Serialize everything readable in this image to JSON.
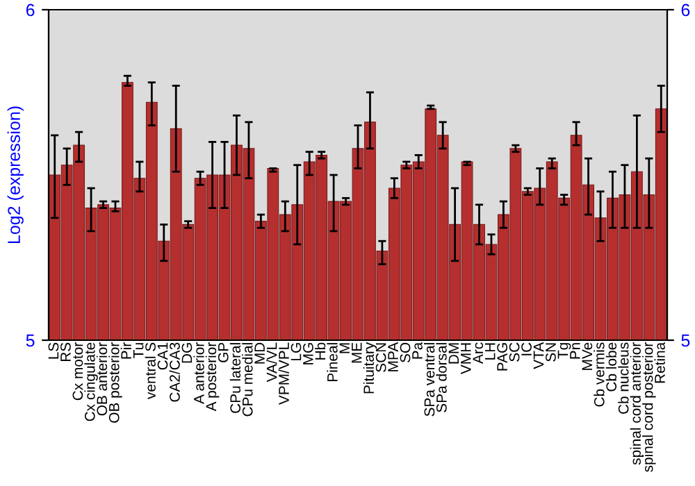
{
  "chart_data": {
    "type": "bar",
    "ylabel": "Log2 (expression)",
    "categories": [
      "LS",
      "RS",
      "Cx motor",
      "Cx cingulate",
      "OB anterior",
      "OB posterior",
      "Pir",
      "Tu",
      "ventral S",
      "CA1",
      "CA2/CA3",
      "DG",
      "A anterior",
      "A posterior",
      "GP",
      "CPu lateral",
      "CPu medial",
      "MD",
      "VA/VL",
      "VPM/VPL",
      "LG",
      "MG",
      "Hb",
      "Pineal",
      "M",
      "ME",
      "Pituitary",
      "SCN",
      "MPA",
      "SO",
      "Pa",
      "SPa ventral",
      "SPa dorsal",
      "DM",
      "VMH",
      "Arc",
      "LH",
      "PAG",
      "SC",
      "IC",
      "VTA",
      "SN",
      "Tg",
      "Pn",
      "MVe",
      "Cb vermis",
      "Cb lobe",
      "Cb nucleus",
      "spinal cord anterior",
      "spinal cord posterior",
      "Retina"
    ],
    "series": [
      {
        "color": "#b52f2f",
        "values": [
          5.5,
          5.53,
          5.59,
          5.4,
          5.41,
          5.4,
          5.78,
          5.49,
          5.72,
          5.3,
          5.64,
          5.35,
          5.49,
          5.5,
          5.5,
          5.59,
          5.58,
          5.36,
          5.52,
          5.38,
          5.41,
          5.54,
          5.56,
          5.42,
          5.42,
          5.58,
          5.66,
          5.27,
          5.46,
          5.53,
          5.54,
          5.7,
          5.62,
          5.35,
          5.54,
          5.35,
          5.29,
          5.38,
          5.58,
          5.45,
          5.46,
          5.54,
          5.43,
          5.62,
          5.47,
          5.37,
          5.43,
          5.44,
          5.51,
          5.44,
          5.7
        ],
        "errors": [
          [
            5.37,
            5.62
          ],
          [
            5.47,
            5.58
          ],
          [
            5.54,
            5.63
          ],
          [
            5.33,
            5.46
          ],
          [
            5.4,
            5.42
          ],
          [
            5.39,
            5.42
          ],
          [
            5.77,
            5.8
          ],
          [
            5.45,
            5.54
          ],
          [
            5.65,
            5.78
          ],
          [
            5.24,
            5.35
          ],
          [
            5.51,
            5.77
          ],
          [
            5.34,
            5.36
          ],
          [
            5.47,
            5.51
          ],
          [
            5.4,
            5.6
          ],
          [
            5.4,
            5.6
          ],
          [
            5.5,
            5.68
          ],
          [
            5.49,
            5.66
          ],
          [
            5.34,
            5.38
          ],
          [
            5.51,
            5.52
          ],
          [
            5.33,
            5.42
          ],
          [
            5.29,
            5.53
          ],
          [
            5.5,
            5.57
          ],
          [
            5.55,
            5.57
          ],
          [
            5.33,
            5.5
          ],
          [
            5.41,
            5.43
          ],
          [
            5.52,
            5.65
          ],
          [
            5.58,
            5.75
          ],
          [
            5.23,
            5.3
          ],
          [
            5.43,
            5.49
          ],
          [
            5.52,
            5.54
          ],
          [
            5.52,
            5.56
          ],
          [
            5.7,
            5.71
          ],
          [
            5.58,
            5.66
          ],
          [
            5.24,
            5.46
          ],
          [
            5.53,
            5.54
          ],
          [
            5.29,
            5.41
          ],
          [
            5.26,
            5.32
          ],
          [
            5.34,
            5.42
          ],
          [
            5.57,
            5.59
          ],
          [
            5.44,
            5.46
          ],
          [
            5.41,
            5.52
          ],
          [
            5.52,
            5.55
          ],
          [
            5.41,
            5.44
          ],
          [
            5.59,
            5.66
          ],
          [
            5.38,
            5.55
          ],
          [
            5.3,
            5.45
          ],
          [
            5.34,
            5.51
          ],
          [
            5.34,
            5.53
          ],
          [
            5.34,
            5.68
          ],
          [
            5.34,
            5.55
          ],
          [
            5.63,
            5.77
          ]
        ]
      }
    ],
    "ylim": [
      5,
      6
    ],
    "yticks": [
      5,
      6
    ],
    "y2lim": [
      5,
      6
    ],
    "y2ticks": [
      5,
      6
    ],
    "grid": false,
    "legend": false
  }
}
